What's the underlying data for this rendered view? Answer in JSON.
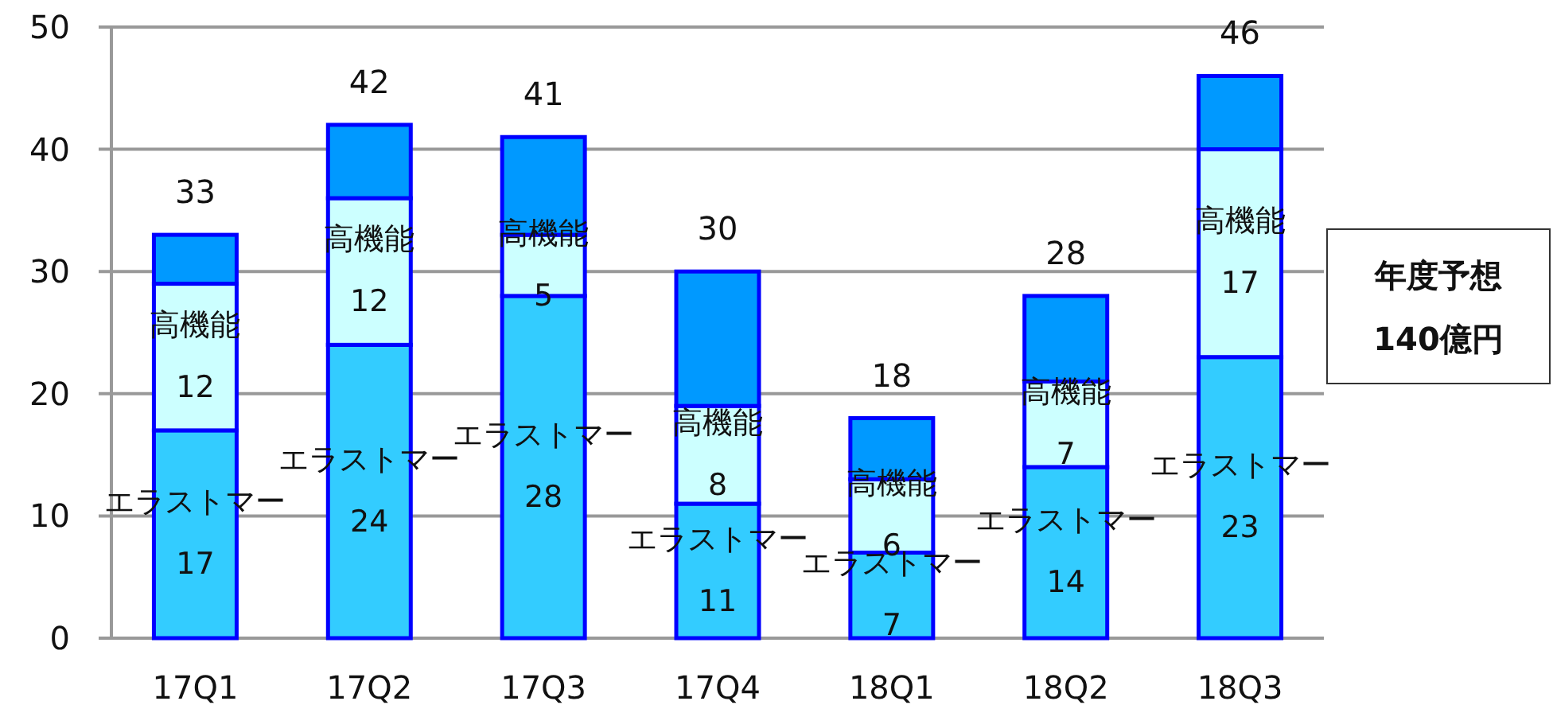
{
  "chart_data": {
    "type": "bar",
    "stacked": true,
    "categories": [
      "17Q1",
      "17Q2",
      "17Q3",
      "17Q4",
      "18Q1",
      "18Q2",
      "18Q3"
    ],
    "series": [
      {
        "name": "エラストマー",
        "color": "#33ccff",
        "values": [
          17,
          24,
          28,
          11,
          7,
          14,
          23
        ],
        "value_labels": [
          "17",
          "24",
          "28",
          "11",
          "7",
          "14",
          "23"
        ]
      },
      {
        "name": "高機能",
        "color": "#ccffff",
        "values": [
          12,
          12,
          5,
          8,
          6,
          7,
          17
        ],
        "value_labels": [
          "12",
          "12",
          "5",
          "8",
          "6",
          "7",
          "17"
        ]
      },
      {
        "color": "#0099ff",
        "values": [
          4,
          6,
          8,
          11,
          5,
          7,
          6
        ]
      }
    ],
    "totals": [
      "33",
      "42",
      "41",
      "30",
      "18",
      "28",
      "46"
    ],
    "ylim": [
      0,
      50
    ],
    "yticks": [
      0,
      10,
      20,
      30,
      40,
      50
    ],
    "grid": "y",
    "legend": false,
    "annotations": [
      "年度予想\n140億円"
    ]
  }
}
